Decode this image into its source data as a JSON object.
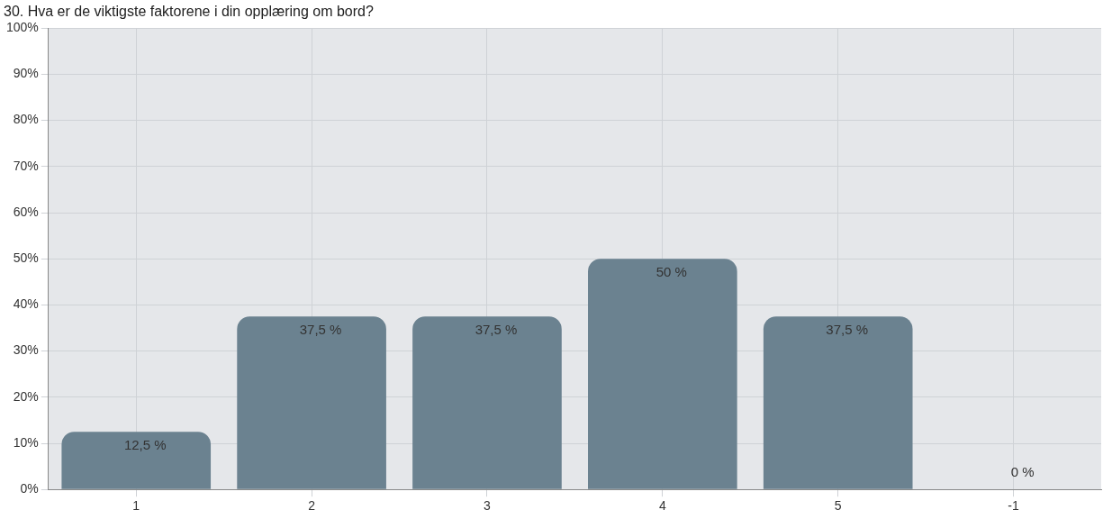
{
  "chart_data": {
    "type": "bar",
    "title": "30. Hva er de viktigste faktorene i din opplæring om bord?",
    "categories": [
      "1",
      "2",
      "3",
      "4",
      "5",
      "-1"
    ],
    "values": [
      12.5,
      37.5,
      37.5,
      50,
      37.5,
      0
    ],
    "value_labels": [
      "12,5 %",
      "37,5 %",
      "37,5 %",
      "50 %",
      "37,5 %",
      "0 %"
    ],
    "color": "#6b8290",
    "ylim": [
      0,
      100
    ],
    "yticks": [
      {
        "value": 0,
        "label": "0%"
      },
      {
        "value": 10,
        "label": "10%"
      },
      {
        "value": 20,
        "label": "20%"
      },
      {
        "value": 30,
        "label": "30%"
      },
      {
        "value": 40,
        "label": "40%"
      },
      {
        "value": 50,
        "label": "50%"
      },
      {
        "value": 60,
        "label": "60%"
      },
      {
        "value": 70,
        "label": "70%"
      },
      {
        "value": 80,
        "label": "80%"
      },
      {
        "value": 90,
        "label": "90%"
      },
      {
        "value": 100,
        "label": "100%"
      }
    ],
    "grid": true,
    "legend": false
  }
}
